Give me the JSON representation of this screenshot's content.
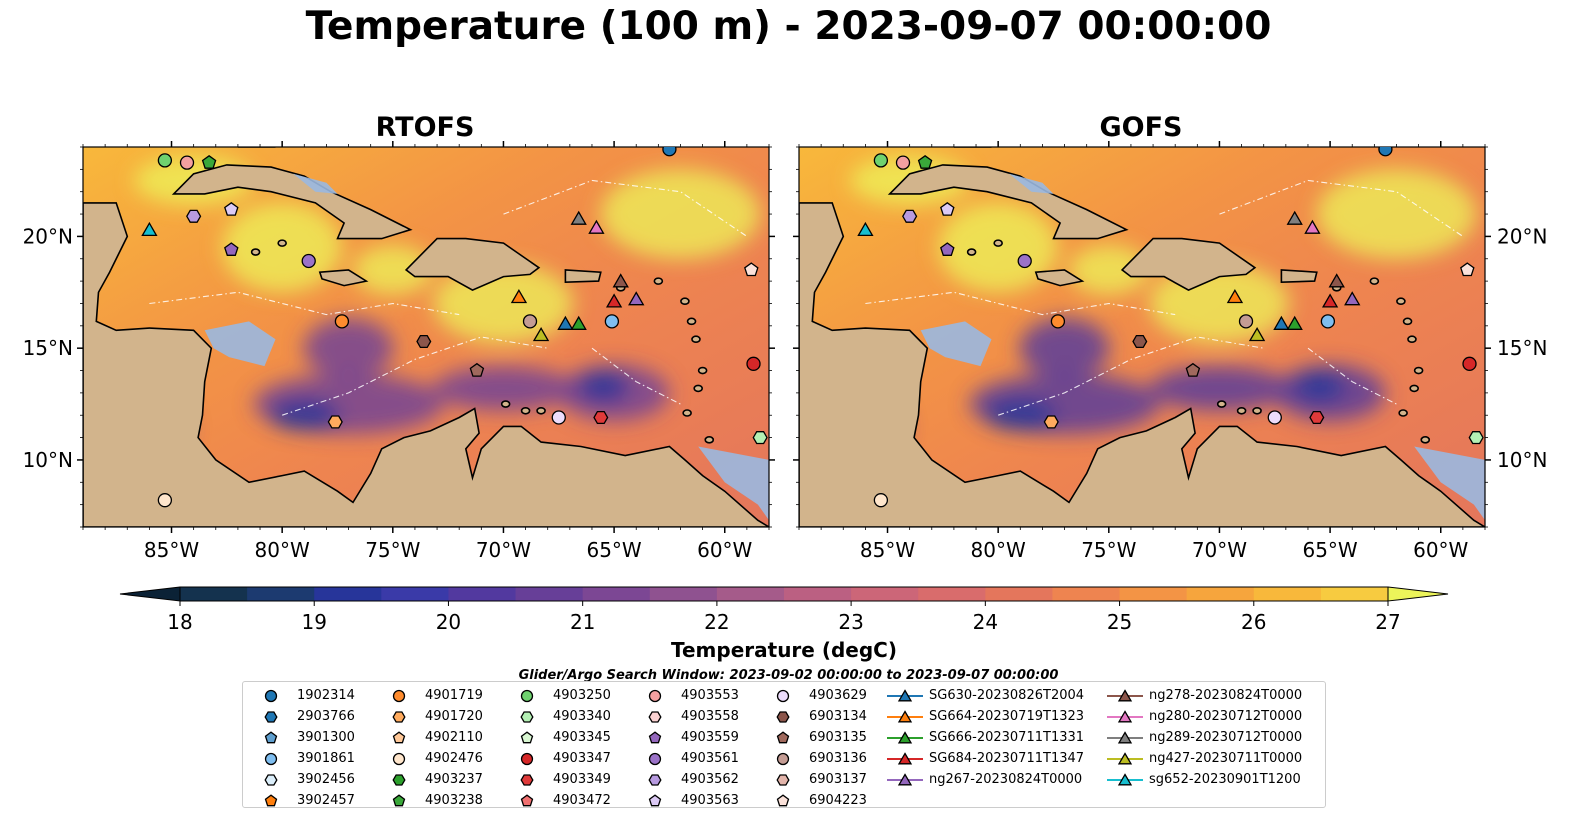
{
  "title": "Temperature (100 m) - 2023-09-07 00:00:00",
  "panels": [
    {
      "title": "RTOFS"
    },
    {
      "title": "GOFS"
    }
  ],
  "search_window": "Glider/Argo Search Window: 2023-09-02 00:00:00 to 2023-09-07 00:00:00",
  "colors": {
    "land": "#d2b48c",
    "shallow_water": "#9ab8e0",
    "coast": "#000000"
  },
  "chart_data": [
    {
      "type": "heatmap",
      "panel": "RTOFS",
      "title": "RTOFS",
      "xlim": [
        -89,
        -58
      ],
      "ylim": [
        7,
        24
      ],
      "x_ticks": [
        -85,
        -80,
        -75,
        -70,
        -65,
        -60
      ],
      "x_tick_labels": [
        "85°W",
        "80°W",
        "75°W",
        "70°W",
        "65°W",
        "60°W"
      ],
      "y_ticks": [
        10,
        15,
        20
      ],
      "y_tick_labels": [
        "10°N",
        "15°N",
        "20°N"
      ],
      "grid": false
    },
    {
      "type": "heatmap",
      "panel": "GOFS",
      "title": "GOFS",
      "xlim": [
        -89,
        -58
      ],
      "ylim": [
        7,
        24
      ],
      "x_ticks": [
        -85,
        -80,
        -75,
        -70,
        -65,
        -60
      ],
      "x_tick_labels": [
        "85°W",
        "80°W",
        "75°W",
        "70°W",
        "65°W",
        "60°W"
      ],
      "y_ticks": [
        10,
        15,
        20
      ],
      "y_tick_labels": [
        "10°N",
        "15°N",
        "20°N"
      ],
      "grid": false
    }
  ],
  "colorbar": {
    "label": "Temperature (degC)",
    "min": 18,
    "max": 27,
    "step": 0.5,
    "ticks": [
      18,
      19,
      20,
      21,
      22,
      23,
      24,
      25,
      26,
      27
    ],
    "extend": "both",
    "colors": [
      "#0b2236",
      "#14324e",
      "#1c3a70",
      "#27359a",
      "#3a3aa8",
      "#52399f",
      "#673f98",
      "#7c4794",
      "#8f5290",
      "#a55b8a",
      "#bb6082",
      "#cc6678",
      "#d96c6c",
      "#e4765c",
      "#ee8450",
      "#f39445",
      "#f6a53d",
      "#f8b83b",
      "#f7cb40",
      "#f2e04b",
      "#ecf45a"
    ]
  },
  "markers": [
    {
      "id": "1902314",
      "shape": "circle",
      "color": "#1f77b4",
      "lon": -62.5,
      "lat": 23.9
    },
    {
      "id": "2903766",
      "shape": "hexagon",
      "color": "#1f77b4"
    },
    {
      "id": "3901300",
      "shape": "pentagon",
      "color": "#5f9fcf"
    },
    {
      "id": "3901861",
      "shape": "circle",
      "color": "#7fbef0",
      "lon": -65.1,
      "lat": 16.2
    },
    {
      "id": "3902456",
      "shape": "hexagon",
      "color": "#dbeefa"
    },
    {
      "id": "3902457",
      "shape": "pentagon",
      "color": "#ff7f0e"
    },
    {
      "id": "4901719",
      "shape": "circle",
      "color": "#ff8c2e",
      "lon": -77.3,
      "lat": 16.2
    },
    {
      "id": "4901720",
      "shape": "hexagon",
      "color": "#ffab5e",
      "lon": -77.6,
      "lat": 11.7
    },
    {
      "id": "4902110",
      "shape": "pentagon",
      "color": "#ffc898"
    },
    {
      "id": "4902476",
      "shape": "circle",
      "color": "#ffe6cc",
      "lon": -85.3,
      "lat": 8.2
    },
    {
      "id": "4903237",
      "shape": "hexagon",
      "color": "#2ca02c"
    },
    {
      "id": "4903238",
      "shape": "pentagon",
      "color": "#3aa83a",
      "lon": -83.3,
      "lat": 23.3
    },
    {
      "id": "4903250",
      "shape": "circle",
      "color": "#6fd26f",
      "lon": -85.3,
      "lat": 23.4
    },
    {
      "id": "4903340",
      "shape": "hexagon",
      "color": "#b4f0b4",
      "lon": -58.4,
      "lat": 11.0
    },
    {
      "id": "4903345",
      "shape": "pentagon",
      "color": "#d9f7d2"
    },
    {
      "id": "4903347",
      "shape": "circle",
      "color": "#d62728",
      "lon": -58.7,
      "lat": 14.3
    },
    {
      "id": "4903349",
      "shape": "hexagon",
      "color": "#e03a3a",
      "lon": -65.6,
      "lat": 11.9
    },
    {
      "id": "4903472",
      "shape": "pentagon",
      "color": "#f07070"
    },
    {
      "id": "4903553",
      "shape": "circle",
      "color": "#f4a0a0",
      "lon": -84.3,
      "lat": 23.3
    },
    {
      "id": "4903558",
      "shape": "hexagon",
      "color": "#fbd2d2"
    },
    {
      "id": "4903559",
      "shape": "pentagon",
      "color": "#9467bd",
      "lon": -82.3,
      "lat": 19.4
    },
    {
      "id": "4903561",
      "shape": "circle",
      "color": "#9b72c8",
      "lon": -78.8,
      "lat": 18.9
    },
    {
      "id": "4903562",
      "shape": "hexagon",
      "color": "#b79ae0",
      "lon": -84.0,
      "lat": 20.9
    },
    {
      "id": "4903563",
      "shape": "pentagon",
      "color": "#dccaf5",
      "lon": -82.3,
      "lat": 21.2
    },
    {
      "id": "4903629",
      "shape": "circle",
      "color": "#ecdcfb",
      "lon": -67.5,
      "lat": 11.9
    },
    {
      "id": "6903134",
      "shape": "hexagon",
      "color": "#8c564b",
      "lon": -73.6,
      "lat": 15.3
    },
    {
      "id": "6903135",
      "shape": "pentagon",
      "color": "#a0695d",
      "lon": -71.2,
      "lat": 14.0
    },
    {
      "id": "6903136",
      "shape": "circle",
      "color": "#c49c94",
      "lon": -68.8,
      "lat": 16.2
    },
    {
      "id": "6903137",
      "shape": "hexagon",
      "color": "#e3b5ab"
    },
    {
      "id": "6904223",
      "shape": "pentagon",
      "color": "#fbe2da",
      "lon": -58.8,
      "lat": 18.5
    },
    {
      "id": "SG630-20230826T2004",
      "shape": "triangle",
      "color": "#1f77b4",
      "lon": -67.2,
      "lat": 16.1
    },
    {
      "id": "SG664-20230719T1323",
      "shape": "triangle",
      "color": "#ff7f0e",
      "lon": -69.3,
      "lat": 17.3
    },
    {
      "id": "SG666-20230711T1331",
      "shape": "triangle",
      "color": "#2ca02c",
      "lon": -66.6,
      "lat": 16.1
    },
    {
      "id": "SG684-20230711T1347",
      "shape": "triangle",
      "color": "#d62728",
      "lon": -65.0,
      "lat": 17.1
    },
    {
      "id": "ng267-20230824T0000",
      "shape": "triangle",
      "color": "#9467bd",
      "lon": -64.0,
      "lat": 17.2
    },
    {
      "id": "ng278-20230824T0000",
      "shape": "triangle",
      "color": "#8c564b",
      "lon": -64.7,
      "lat": 18.0
    },
    {
      "id": "ng280-20230712T0000",
      "shape": "triangle",
      "color": "#e377c2",
      "lon": -65.8,
      "lat": 20.4
    },
    {
      "id": "ng289-20230712T0000",
      "shape": "triangle",
      "color": "#7f7f7f",
      "lon": -66.6,
      "lat": 20.8
    },
    {
      "id": "ng427-20230711T0000",
      "shape": "triangle",
      "color": "#bcbd22",
      "lon": -68.3,
      "lat": 15.6
    },
    {
      "id": "sg652-20230901T1200",
      "shape": "triangle",
      "color": "#17becf",
      "lon": -86.0,
      "lat": 20.3
    }
  ]
}
